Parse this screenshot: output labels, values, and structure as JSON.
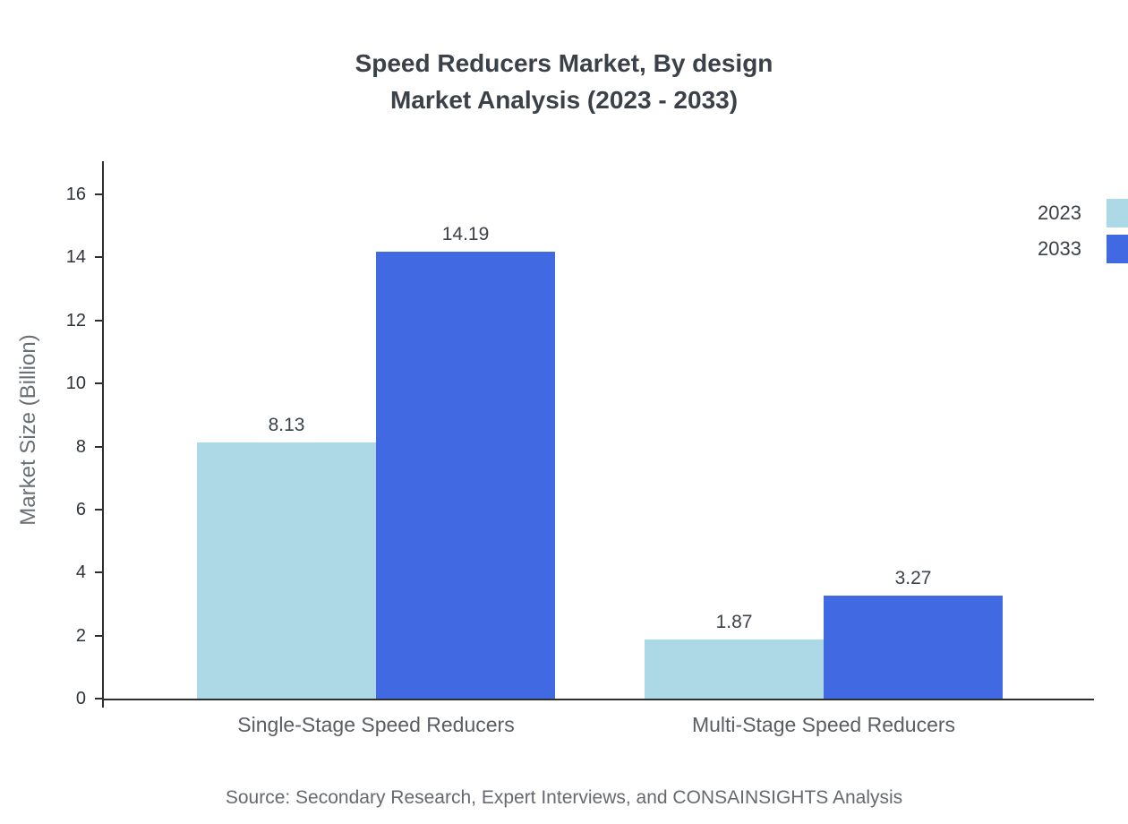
{
  "title": {
    "line1": "Speed Reducers Market, By design",
    "line2": "Market Analysis (2023 - 2033)"
  },
  "source_note": "Source: Secondary Research, Expert Interviews, and CONSAINSIGHTS Analysis",
  "chart_data": {
    "type": "bar",
    "title": "Speed Reducers Market, By design - Market Analysis (2023 - 2033)",
    "categories": [
      "Single-Stage Speed Reducers",
      "Multi-Stage Speed Reducers"
    ],
    "series": [
      {
        "name": "2023",
        "color": "#ADD8E6",
        "values": [
          8.13,
          1.87
        ]
      },
      {
        "name": "2033",
        "color": "#4169E1",
        "values": [
          14.19,
          3.27
        ]
      }
    ],
    "xlabel": "",
    "ylabel": "Market Size (Billion)",
    "ylim": [
      0,
      16
    ],
    "yticks": [
      0,
      2,
      4,
      6,
      8,
      10,
      12,
      14,
      16
    ],
    "grid": false,
    "legend_position": "top-right"
  }
}
